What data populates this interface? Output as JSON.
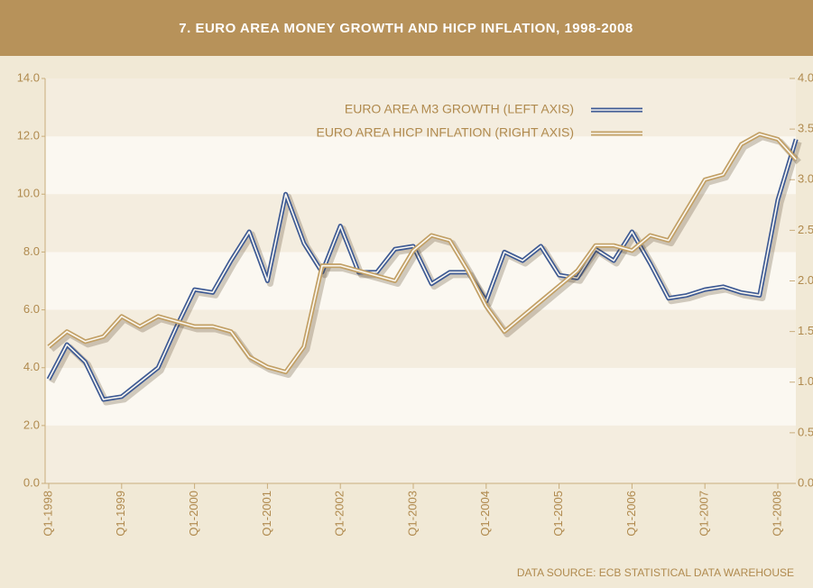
{
  "chart_data": {
    "type": "line",
    "title": "7. EURO AREA MONEY GROWTH AND HICP INFLATION, 1998-2008",
    "source": "DATA SOURCE: ECB STATISTICAL DATA WAREHOUSE",
    "categories": [
      "Q1-1998",
      null,
      null,
      null,
      "Q1-1999",
      null,
      null,
      null,
      "Q1-2000",
      null,
      null,
      null,
      "Q1-2001",
      null,
      null,
      null,
      "Q1-2002",
      null,
      null,
      null,
      "Q1-2003",
      null,
      null,
      null,
      "Q1-2004",
      null,
      null,
      null,
      "Q1-2005",
      null,
      null,
      null,
      "Q1-2006",
      null,
      null,
      null,
      "Q1-2007",
      null,
      null,
      null,
      "Q1-2008",
      null
    ],
    "series": [
      {
        "name": "EURO AREA M3 GROWTH (LEFT AXIS)",
        "color": "#3f5b94",
        "axis": "y",
        "values": [
          3.6,
          4.8,
          4.2,
          2.9,
          3.0,
          3.5,
          4.0,
          5.4,
          6.7,
          6.6,
          7.7,
          8.7,
          7.0,
          10.0,
          8.3,
          7.3,
          8.9,
          7.3,
          7.3,
          8.1,
          8.2,
          6.9,
          7.3,
          7.3,
          6.3,
          8.0,
          7.7,
          8.2,
          7.2,
          7.1,
          8.1,
          7.7,
          8.7,
          7.6,
          6.4,
          6.5,
          6.7,
          6.8,
          6.6,
          6.5,
          9.8,
          11.9
        ]
      },
      {
        "name": "EURO AREA HICP INFLATION (RIGHT AXIS)",
        "color": "#c2a066",
        "axis": "y2",
        "values": [
          1.35,
          1.5,
          1.4,
          1.45,
          1.65,
          1.55,
          1.65,
          1.6,
          1.55,
          1.55,
          1.5,
          1.25,
          1.15,
          1.1,
          1.35,
          2.15,
          2.15,
          2.1,
          2.05,
          2.0,
          2.3,
          2.45,
          2.4,
          2.1,
          1.75,
          1.5,
          1.65,
          1.8,
          1.95,
          2.1,
          2.35,
          2.35,
          2.3,
          2.45,
          2.4,
          2.7,
          3.0,
          3.05,
          3.35,
          3.45,
          3.4,
          3.2
        ]
      }
    ],
    "ylim": [
      0,
      14
    ],
    "yticks": [
      {
        "value": 0,
        "label": "0.0"
      },
      {
        "value": 2,
        "label": "2.0"
      },
      {
        "value": 4,
        "label": "4.0"
      },
      {
        "value": 6,
        "label": "6.0"
      },
      {
        "value": 8,
        "label": "8.0"
      },
      {
        "value": 10,
        "label": "10.0"
      },
      {
        "value": 12,
        "label": "12.0"
      },
      {
        "value": 14,
        "label": "14.0"
      }
    ],
    "y2lim": [
      0,
      4
    ],
    "y2ticks": [
      {
        "value": 0,
        "label": "0.0"
      },
      {
        "value": 0.5,
        "label": "0.5"
      },
      {
        "value": 1,
        "label": "1.0"
      },
      {
        "value": 1.5,
        "label": "1.5"
      },
      {
        "value": 2,
        "label": "2.0"
      },
      {
        "value": 2.5,
        "label": "2.5"
      },
      {
        "value": 3,
        "label": "3.0"
      },
      {
        "value": 3.5,
        "label": "3.5"
      },
      {
        "value": 4,
        "label": "4.0"
      }
    ],
    "grid": true,
    "legend": "top-right"
  }
}
